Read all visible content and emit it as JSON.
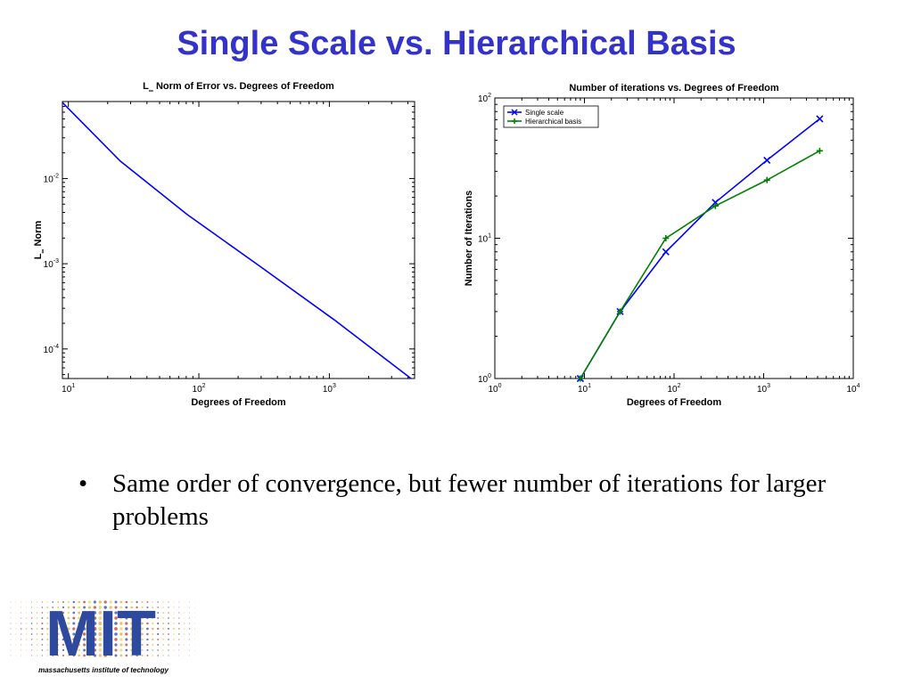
{
  "slide": {
    "title": "Single Scale vs. Hierarchical Basis",
    "bullet": "Same order of convergence, but fewer number of iterations for larger problems",
    "bullet_symbol": "•",
    "logo": {
      "word": "MIT",
      "tagline": "massachusetts institute of technology",
      "colors": [
        "#2e4a9e",
        "#f0a23b",
        "#c0392b",
        "#e6d24a"
      ]
    }
  },
  "chart_data": [
    {
      "type": "line",
      "title_main": "L",
      "title_sub": "∞",
      "title_rest": " Norm of Error vs. Degrees of Freedom",
      "xlabel": "Degrees of Freedom",
      "ylabel_main": "L",
      "ylabel_sub": "∞",
      "ylabel_rest": " Norm",
      "xscale": "log",
      "yscale": "log",
      "xlim": [
        9,
        4500
      ],
      "ylim": [
        4.5e-05,
        0.08
      ],
      "xticks": [
        {
          "value": 10,
          "base": "10",
          "exp": "1"
        },
        {
          "value": 100,
          "base": "10",
          "exp": "2"
        },
        {
          "value": 1000,
          "base": "10",
          "exp": "3"
        }
      ],
      "yticks": [
        {
          "value": 0.0001,
          "base": "10",
          "exp": "-4"
        },
        {
          "value": 0.001,
          "base": "10",
          "exp": "-3"
        },
        {
          "value": 0.01,
          "base": "10",
          "exp": "-2"
        }
      ],
      "series": [
        {
          "color": "#0000ff",
          "x": [
            9,
            25,
            81,
            289,
            1089,
            4225
          ],
          "y": [
            0.078,
            0.016,
            0.0038,
            0.00095,
            0.00022,
            4.5e-05
          ]
        }
      ]
    },
    {
      "type": "line",
      "title": "Number of iterations vs. Degrees of Freedom",
      "xlabel": "Degrees of Freedom",
      "ylabel": "Number of Iterations",
      "xscale": "log",
      "yscale": "log",
      "xlim": [
        1,
        10000
      ],
      "ylim": [
        1,
        100
      ],
      "xticks": [
        {
          "value": 1,
          "base": "10",
          "exp": "0"
        },
        {
          "value": 10,
          "base": "10",
          "exp": "1"
        },
        {
          "value": 100,
          "base": "10",
          "exp": "2"
        },
        {
          "value": 1000,
          "base": "10",
          "exp": "3"
        },
        {
          "value": 10000,
          "base": "10",
          "exp": "4"
        }
      ],
      "yticks": [
        {
          "value": 1,
          "base": "10",
          "exp": "0"
        },
        {
          "value": 10,
          "base": "10",
          "exp": "1"
        },
        {
          "value": 100,
          "base": "10",
          "exp": "2"
        }
      ],
      "legend_position": "top-left",
      "series": [
        {
          "name": "Single scale",
          "color": "#0000ff",
          "marker": "x",
          "x": [
            9,
            25,
            81,
            289,
            1089,
            4225
          ],
          "y": [
            1,
            3,
            8,
            18,
            36,
            71
          ]
        },
        {
          "name": "Hierarchical basis",
          "color": "#008000",
          "marker": "+",
          "x": [
            9,
            25,
            81,
            289,
            1089,
            4225
          ],
          "y": [
            1,
            3,
            10,
            17,
            26,
            42
          ]
        }
      ]
    }
  ]
}
